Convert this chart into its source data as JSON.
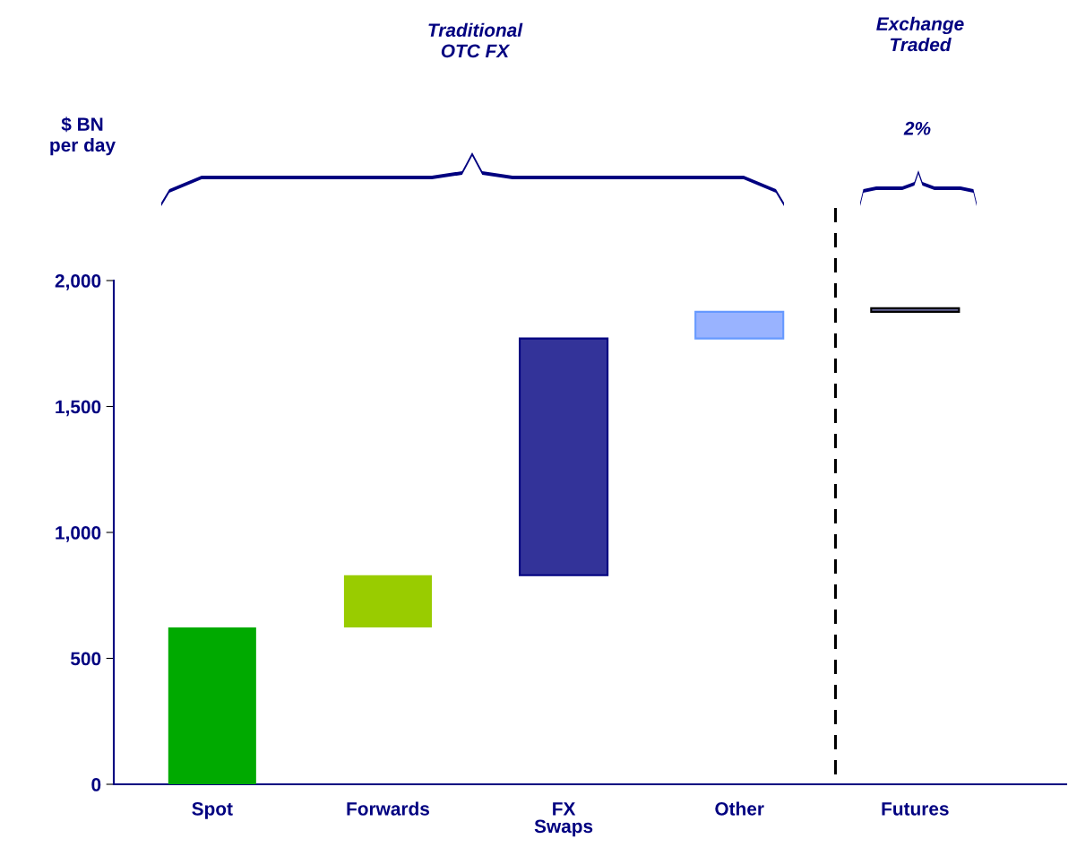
{
  "chart_data": {
    "type": "bar",
    "categories": [
      "Spot",
      "Forwards",
      "FX\nSwaps",
      "Other",
      "Futures"
    ],
    "values": [
      623,
      207,
      940,
      106,
      14
    ],
    "base": [
      0,
      623,
      830,
      1770,
      1876
    ],
    "colors": [
      "#00aa00",
      "#99cc00",
      "#333399",
      "#99b3ff",
      "#666699"
    ],
    "ylim": [
      0,
      2000
    ],
    "yticks": [
      0,
      {
        "value": 500,
        "label": "500"
      },
      {
        "value": 1000,
        "label": "1,000"
      },
      {
        "value": 1500,
        "label": "1,500"
      },
      {
        "value": 2000,
        "label": "2,000"
      }
    ],
    "annotations": [
      "Traditional\nOTC FX",
      "Exchange\nTraded",
      "2%",
      "$ BN\nper day"
    ],
    "grid": false,
    "legend": false
  }
}
